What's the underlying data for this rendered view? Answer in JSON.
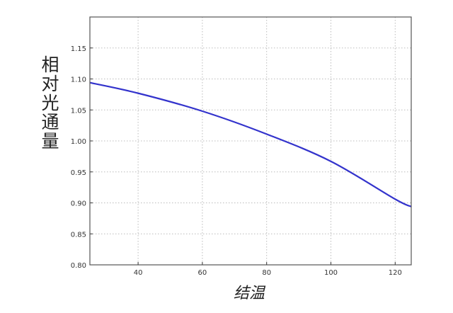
{
  "chart_data": {
    "type": "line",
    "title": "",
    "xlabel": "结温",
    "ylabel": "相对光通量",
    "xlim": [
      25,
      125
    ],
    "ylim": [
      0.8,
      1.2
    ],
    "xticks": [
      "40",
      "60",
      "80",
      "100",
      "120"
    ],
    "yticks": [
      "0.80",
      "0.85",
      "0.90",
      "0.95",
      "1.00",
      "1.05",
      "1.10",
      "1.15"
    ],
    "grid": true,
    "series": [
      {
        "color": "#3333cc",
        "x": [
          25,
          40,
          60,
          80,
          100,
          120,
          125
        ],
        "y": [
          1.094,
          1.077,
          1.048,
          1.011,
          0.967,
          0.906,
          0.894
        ]
      }
    ]
  }
}
